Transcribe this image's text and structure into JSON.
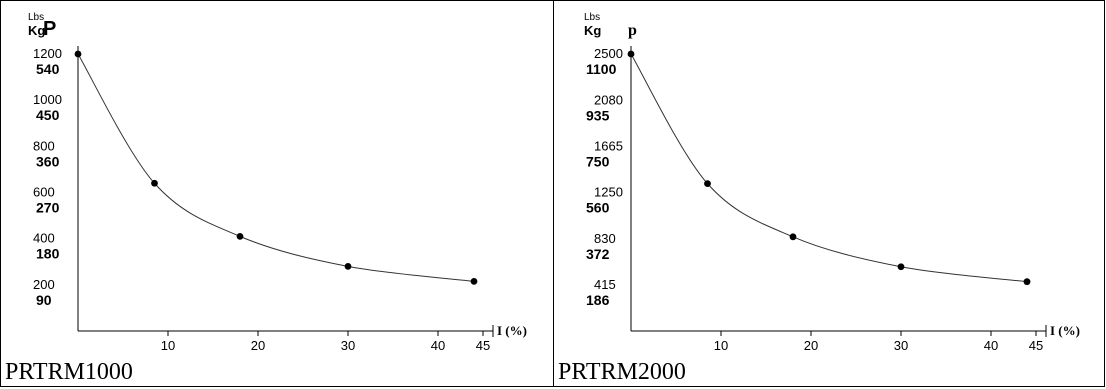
{
  "chart_data": [
    {
      "type": "line",
      "caption": "PRTRM1000",
      "ytitle": "P",
      "unit_lbs": "Lbs",
      "unit_kg": "Kg",
      "xlabel": "I (%)",
      "x_ticks": [
        "10",
        "20",
        "30",
        "40",
        "45"
      ],
      "x_tick_values": [
        10,
        20,
        30,
        40,
        45
      ],
      "lbs_ticks": [
        "1200",
        "1000",
        "800",
        "600",
        "400",
        "200"
      ],
      "kg_ticks": [
        "540",
        "450",
        "360",
        "270",
        "180",
        "90"
      ],
      "lbs_tick_values": [
        1200,
        1000,
        800,
        600,
        400,
        200
      ],
      "xlim": [
        0,
        45
      ],
      "ylim": [
        0,
        1200
      ],
      "points": [
        [
          0,
          1200
        ],
        [
          8.5,
          640
        ],
        [
          18,
          410
        ],
        [
          30,
          280
        ],
        [
          44,
          215
        ]
      ]
    },
    {
      "type": "line",
      "caption": "PRTRM2000",
      "ytitle": "p",
      "unit_lbs": "Lbs",
      "unit_kg": "Kg",
      "xlabel": "I (%)",
      "x_ticks": [
        "10",
        "20",
        "30",
        "40",
        "45"
      ],
      "x_tick_values": [
        10,
        20,
        30,
        40,
        45
      ],
      "lbs_ticks": [
        "2500",
        "2080",
        "1665",
        "1250",
        "830",
        "415"
      ],
      "kg_ticks": [
        "1100",
        "935",
        "750",
        "560",
        "372",
        "186"
      ],
      "lbs_tick_values": [
        2500,
        2080,
        1665,
        1250,
        830,
        415
      ],
      "xlim": [
        0,
        45
      ],
      "ylim": [
        0,
        2500
      ],
      "points": [
        [
          0,
          2500
        ],
        [
          8.5,
          1330
        ],
        [
          18,
          850
        ],
        [
          30,
          580
        ],
        [
          44,
          445
        ]
      ]
    }
  ]
}
